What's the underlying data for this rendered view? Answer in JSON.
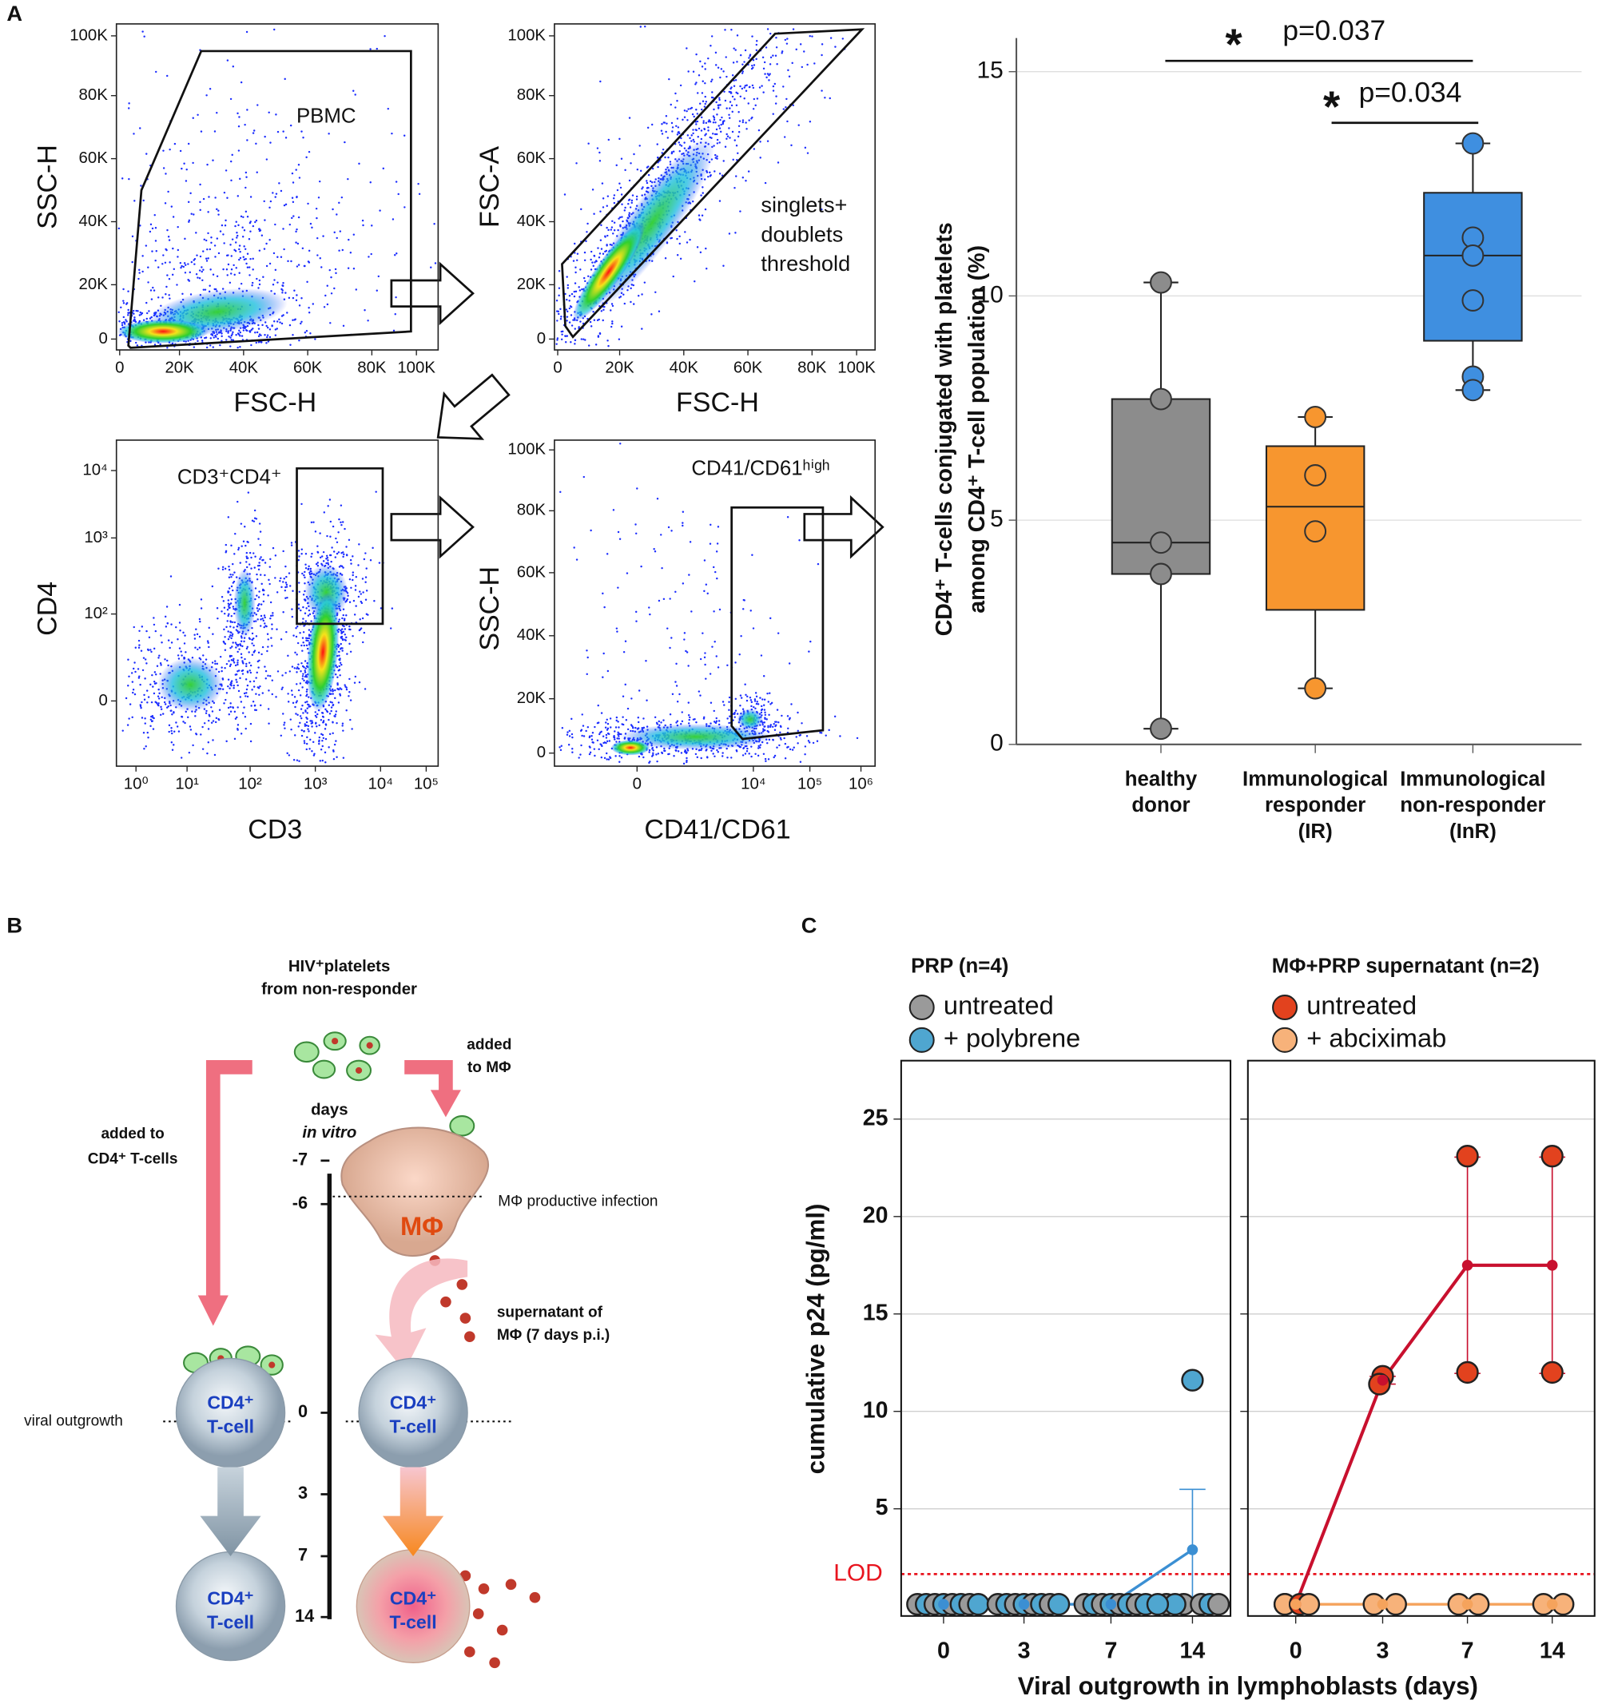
{
  "panel_labels": {
    "a": "A",
    "b": "B",
    "c": "C"
  },
  "flow_plots": [
    {
      "xlabel": "FSC-H",
      "ylabel": "SSC-H",
      "xticks": [
        "0",
        "20K",
        "40K",
        "60K",
        "80K",
        "100K"
      ],
      "yticks": [
        "0",
        "20K",
        "40K",
        "60K",
        "80K",
        "100K"
      ],
      "gate_label": [
        "PBMC"
      ]
    },
    {
      "xlabel": "FSC-H",
      "ylabel": "FSC-A",
      "xticks": [
        "0",
        "20K",
        "40K",
        "60K",
        "80K",
        "100K"
      ],
      "yticks": [
        "0",
        "20K",
        "40K",
        "60K",
        "80K",
        "100K"
      ],
      "gate_label": [
        "singlets+",
        "doublets",
        "threshold"
      ]
    },
    {
      "xlabel": "CD3",
      "ylabel": "CD4",
      "xticks": [
        "10⁰",
        "10¹",
        "10²",
        "10³",
        "10⁴",
        "10⁵"
      ],
      "yticks": [
        "0",
        "10²",
        "10³",
        "10⁴"
      ],
      "gate_label": [
        "CD3⁺CD4⁺"
      ]
    },
    {
      "xlabel": "CD41/CD61",
      "ylabel": "SSC-H",
      "xticks": [
        "0",
        "10⁴",
        "10⁵",
        "10⁶"
      ],
      "yticks": [
        "0",
        "20K",
        "40K",
        "60K",
        "80K",
        "100K"
      ],
      "gate_label": [
        "CD41/CD61ʰⁱᵍʰ"
      ]
    }
  ],
  "box_chart": {
    "type": "box",
    "ylabel": [
      "CD4⁺ T-cells conjugated with platelets",
      "among CD4⁺ T-cell population (%)"
    ],
    "categories": [
      [
        "healthy",
        "donor"
      ],
      [
        "Immunological",
        "responder",
        "(IR)"
      ],
      [
        "Immunological",
        "non-responder",
        "(InR)"
      ]
    ],
    "ylim": [
      0,
      15.75
    ],
    "yticks": [
      0,
      5,
      10,
      15
    ],
    "grid": true,
    "boxes": [
      {
        "color": "#8c8c8c",
        "whisker_low": 0.35,
        "q1": 3.8,
        "median": 4.5,
        "q3": 7.7,
        "whisker_high": 10.3,
        "points": [
          10.3,
          7.7,
          4.5,
          3.8,
          0.35
        ]
      },
      {
        "color": "#f7962f",
        "whisker_low": 1.25,
        "q1": 3.0,
        "median": 5.3,
        "q3": 6.65,
        "whisker_high": 7.3,
        "points": [
          7.3,
          6.0,
          4.75,
          1.25
        ]
      },
      {
        "color": "#3f8fe0",
        "whisker_low": 7.9,
        "q1": 9.0,
        "median": 10.9,
        "q3": 12.3,
        "whisker_high": 13.4,
        "points": [
          13.4,
          11.3,
          10.9,
          9.9,
          8.2,
          7.9
        ]
      }
    ],
    "comparisons": [
      {
        "star": "*",
        "label": "p=0.037"
      },
      {
        "star": "*",
        "label": "p=0.034"
      }
    ]
  },
  "diagram": {
    "title": [
      "HIV⁺platelets",
      "from non-responder"
    ],
    "added_mphi": [
      "added",
      "to MΦ"
    ],
    "added_cd4": [
      "added to",
      "CD4⁺ T-cells"
    ],
    "days": [
      "days",
      "in vitro"
    ],
    "timeline": [
      "-7",
      "-6",
      "0",
      "3",
      "7",
      "14"
    ],
    "mphi_infection": "MΦ productive infection",
    "mphi": "MΦ",
    "supernatant": [
      "supernatant of",
      "MΦ (7 days p.i.)"
    ],
    "viral_outgrowth": "viral outgrowth",
    "cell": [
      "CD4⁺",
      "T-cell"
    ]
  },
  "p24_chart": {
    "type": "dot-line",
    "ylabel": "cumulative p24 (pg/ml)",
    "xlabel": "Viral outgrowth in lymphoblasts (days)",
    "ylim": [
      -0.5,
      28
    ],
    "yticks": [
      5,
      10,
      15,
      20,
      25
    ],
    "grid": true,
    "lod": {
      "value": 1.65,
      "label": "LOD",
      "color": "#e8141e"
    },
    "panels": [
      {
        "title": "PRP (n=4)",
        "categories": [
          "0",
          "3",
          "7",
          "14"
        ],
        "series": [
          {
            "name": "untreated",
            "color": "#9a9a9a",
            "values": [
              [
                0.1,
                0.1,
                0.1,
                0.1
              ],
              [
                0.1,
                0.1,
                0.1,
                0.1
              ],
              [
                0.1,
                0.1,
                0.1,
                0.1
              ],
              [
                0.1,
                0.1,
                0.1,
                0.1
              ]
            ]
          },
          {
            "name": "+ polybrene",
            "color": "#4fa6d0",
            "line_color": "#3b8fd3",
            "values": [
              [
                0.1,
                0.1,
                0.1,
                0.1
              ],
              [
                0.1,
                0.1,
                0.1,
                0.1
              ],
              [
                0.1,
                0.1,
                0.1,
                0.1
              ],
              [
                11.6,
                0.1,
                0.1,
                0.1
              ]
            ],
            "mean": [
              0.1,
              0.1,
              0.1,
              2.9
            ],
            "error": [
              0,
              0,
              0,
              3.1
            ]
          }
        ]
      },
      {
        "title": "MΦ+PRP supernatant (n=2)",
        "categories": [
          "0",
          "3",
          "7",
          "14"
        ],
        "series": [
          {
            "name": "untreated",
            "color": "#e2421e",
            "line_color": "#c8102e",
            "values": [
              [
                0.1,
                0.1
              ],
              [
                11.8,
                11.4
              ],
              [
                23.1,
                12.0
              ],
              [
                23.1,
                12.0
              ]
            ],
            "mean": [
              0.1,
              11.6,
              17.5,
              17.5
            ],
            "error": [
              0,
              0.2,
              5.55,
              5.55
            ]
          },
          {
            "name": "+ abciximab",
            "color": "#f7b27a",
            "line_color": "#f5a35c",
            "values": [
              [
                0.1,
                0.1
              ],
              [
                0.1,
                0.1
              ],
              [
                0.1,
                0.1
              ],
              [
                0.1,
                0.1
              ]
            ],
            "mean": [
              0.1,
              0.1,
              0.1,
              0.1
            ]
          }
        ]
      }
    ]
  }
}
